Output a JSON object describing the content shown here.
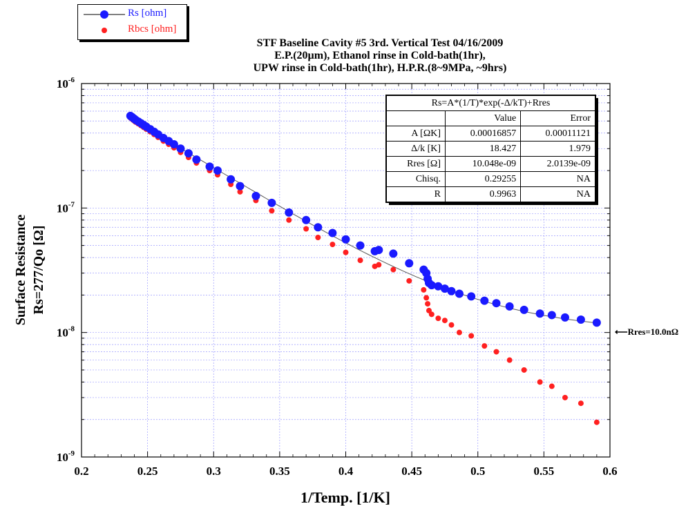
{
  "title_lines": [
    "STF Baseline Cavity #5 3rd. Vertical Test 04/16/2009",
    "E.P.(20µm), Ethanol rinse in Cold-bath(1hr),",
    "UPW rinse in Cold-bath(1hr), H.P.R.(8~9MPa, ~9hrs)"
  ],
  "legend": {
    "position": "top-left",
    "items": [
      {
        "label": "Rs [ohm]",
        "color": "#1a1aff",
        "marker": "circle-with-line"
      },
      {
        "label": "Rbcs [ohm]",
        "color": "#ff2020",
        "marker": "circle"
      }
    ]
  },
  "fit_table": {
    "formula": "Rs=A*(1/T)*exp(-Δ/kT)+Rres",
    "headers": [
      "",
      "Value",
      "Error"
    ],
    "rows": [
      [
        "A [ΩK]",
        "0.00016857",
        "0.00011121"
      ],
      [
        "Δ/k [K]",
        "18.427",
        "1.979"
      ],
      [
        "Rres [Ω]",
        "10.048e-09",
        "2.0139e-09"
      ],
      [
        "Chisq.",
        "0.29255",
        "NA"
      ],
      [
        "R",
        "0.9963",
        "NA"
      ]
    ]
  },
  "annotation": "Rres=10.0nΩ",
  "chart_data": {
    "type": "scatter",
    "xlabel": "1/Temp. [1/K]",
    "ylabel_lines": [
      "Surface Resistance",
      "Rs=277/Qo [Ω]"
    ],
    "xlim": [
      0.2,
      0.6
    ],
    "ylim": [
      1e-09,
      1e-06
    ],
    "yscale": "log",
    "grid": true,
    "x_ticks": [
      "0.2",
      "0.25",
      "0.3",
      "0.35",
      "0.4",
      "0.45",
      "0.5",
      "0.55",
      "0.6"
    ],
    "y_ticks": [
      {
        "base": "10",
        "exp": "-9",
        "value": 1e-09
      },
      {
        "base": "10",
        "exp": "-8",
        "value": 1e-08
      },
      {
        "base": "10",
        "exp": "-7",
        "value": 1e-07
      },
      {
        "base": "10",
        "exp": "-6",
        "value": 1e-06
      }
    ],
    "fit": {
      "A": 0.00016857,
      "delta_over_k": 18.427,
      "Rres": 1.0048e-08,
      "color": "#555555"
    },
    "series": [
      {
        "name": "Rs [ohm]",
        "color": "#1a1aff",
        "points": [
          [
            0.237,
            5.5e-07
          ],
          [
            0.238,
            5.4e-07
          ],
          [
            0.239,
            5.3e-07
          ],
          [
            0.24,
            5.2e-07
          ],
          [
            0.241,
            5.1e-07
          ],
          [
            0.243,
            4.95e-07
          ],
          [
            0.245,
            4.8e-07
          ],
          [
            0.247,
            4.65e-07
          ],
          [
            0.249,
            4.5e-07
          ],
          [
            0.252,
            4.3e-07
          ],
          [
            0.255,
            4.1e-07
          ],
          [
            0.258,
            3.9e-07
          ],
          [
            0.262,
            3.65e-07
          ],
          [
            0.266,
            3.45e-07
          ],
          [
            0.27,
            3.25e-07
          ],
          [
            0.275,
            3e-07
          ],
          [
            0.281,
            2.75e-07
          ],
          [
            0.287,
            2.45e-07
          ],
          [
            0.297,
            2.15e-07
          ],
          [
            0.303,
            2e-07
          ],
          [
            0.313,
            1.7e-07
          ],
          [
            0.32,
            1.5e-07
          ],
          [
            0.332,
            1.25e-07
          ],
          [
            0.344,
            1.1e-07
          ],
          [
            0.357,
            9.2e-08
          ],
          [
            0.37,
            8e-08
          ],
          [
            0.379,
            7e-08
          ],
          [
            0.39,
            6.3e-08
          ],
          [
            0.4,
            5.6e-08
          ],
          [
            0.411,
            5e-08
          ],
          [
            0.422,
            4.5e-08
          ],
          [
            0.425,
            4.6e-08
          ],
          [
            0.436,
            4.3e-08
          ],
          [
            0.448,
            3.6e-08
          ],
          [
            0.459,
            3.2e-08
          ],
          [
            0.461,
            3e-08
          ],
          [
            0.462,
            2.7e-08
          ],
          [
            0.463,
            2.5e-08
          ],
          [
            0.465,
            2.4e-08
          ],
          [
            0.47,
            2.35e-08
          ],
          [
            0.475,
            2.25e-08
          ],
          [
            0.48,
            2.15e-08
          ],
          [
            0.486,
            2.05e-08
          ],
          [
            0.495,
            1.95e-08
          ],
          [
            0.505,
            1.8e-08
          ],
          [
            0.514,
            1.72e-08
          ],
          [
            0.524,
            1.62e-08
          ],
          [
            0.535,
            1.52e-08
          ],
          [
            0.547,
            1.42e-08
          ],
          [
            0.556,
            1.38e-08
          ],
          [
            0.566,
            1.32e-08
          ],
          [
            0.578,
            1.27e-08
          ],
          [
            0.59,
            1.2e-08
          ]
        ]
      },
      {
        "name": "Rbcs [ohm]",
        "color": "#ff2020",
        "points": [
          [
            0.237,
            5.3e-07
          ],
          [
            0.238,
            5.2e-07
          ],
          [
            0.239,
            5.1e-07
          ],
          [
            0.24,
            5e-07
          ],
          [
            0.241,
            4.9e-07
          ],
          [
            0.243,
            4.75e-07
          ],
          [
            0.245,
            4.6e-07
          ],
          [
            0.247,
            4.45e-07
          ],
          [
            0.249,
            4.3e-07
          ],
          [
            0.252,
            4.1e-07
          ],
          [
            0.255,
            3.9e-07
          ],
          [
            0.258,
            3.7e-07
          ],
          [
            0.262,
            3.45e-07
          ],
          [
            0.266,
            3.25e-07
          ],
          [
            0.27,
            3.05e-07
          ],
          [
            0.275,
            2.8e-07
          ],
          [
            0.281,
            2.55e-07
          ],
          [
            0.287,
            2.3e-07
          ],
          [
            0.297,
            2e-07
          ],
          [
            0.303,
            1.85e-07
          ],
          [
            0.313,
            1.55e-07
          ],
          [
            0.32,
            1.35e-07
          ],
          [
            0.332,
            1.15e-07
          ],
          [
            0.344,
            9.5e-08
          ],
          [
            0.357,
            8e-08
          ],
          [
            0.37,
            6.8e-08
          ],
          [
            0.379,
            5.8e-08
          ],
          [
            0.39,
            5.1e-08
          ],
          [
            0.4,
            4.4e-08
          ],
          [
            0.411,
            3.8e-08
          ],
          [
            0.422,
            3.4e-08
          ],
          [
            0.425,
            3.5e-08
          ],
          [
            0.436,
            3.2e-08
          ],
          [
            0.448,
            2.6e-08
          ],
          [
            0.459,
            2.2e-08
          ],
          [
            0.461,
            1.9e-08
          ],
          [
            0.462,
            1.7e-08
          ],
          [
            0.463,
            1.5e-08
          ],
          [
            0.465,
            1.4e-08
          ],
          [
            0.47,
            1.3e-08
          ],
          [
            0.475,
            1.25e-08
          ],
          [
            0.48,
            1.15e-08
          ],
          [
            0.486,
            1e-08
          ],
          [
            0.495,
            9.4e-09
          ],
          [
            0.505,
            7.8e-09
          ],
          [
            0.514,
            7e-09
          ],
          [
            0.524,
            6e-09
          ],
          [
            0.535,
            5e-09
          ],
          [
            0.547,
            4e-09
          ],
          [
            0.556,
            3.7e-09
          ],
          [
            0.566,
            3e-09
          ],
          [
            0.578,
            2.7e-09
          ],
          [
            0.59,
            1.9e-09
          ]
        ]
      }
    ]
  }
}
